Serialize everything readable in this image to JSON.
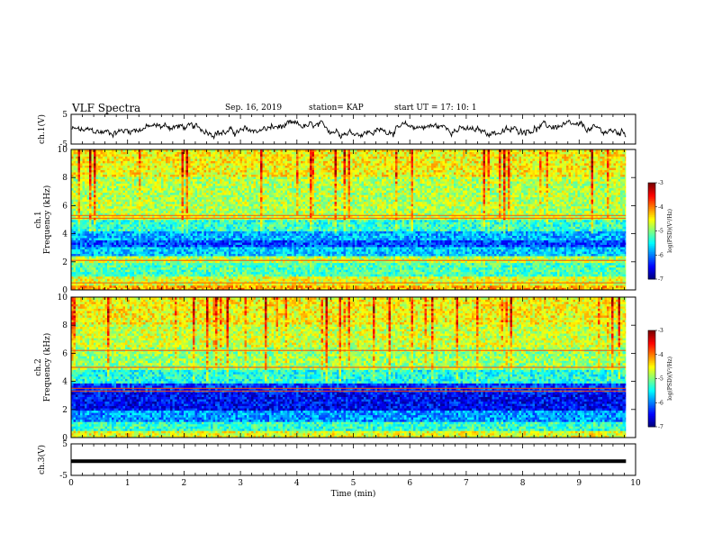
{
  "header": {
    "title": "VLF Spectra",
    "date": "Sep. 16, 2019",
    "station": "station= KAP",
    "start": "start  UT =   17: 10: 1"
  },
  "chart_data": [
    {
      "type": "line",
      "title": "",
      "ylabel": "ch.1(V)",
      "ylim": [
        -5,
        5
      ],
      "yticks": [
        "5",
        "-5"
      ],
      "xlim": [
        0,
        10
      ],
      "series": [
        {
          "name": "",
          "description_values_approx": "noisy waveform, amplitude mostly between -2 and 2 V"
        }
      ]
    },
    {
      "type": "heatmap",
      "title": "",
      "ylabel": "ch.1\nFrequency (kHz)",
      "ylim": [
        0,
        10
      ],
      "yticks": [
        "0",
        "2",
        "4",
        "6",
        "8",
        "10"
      ],
      "xlim": [
        0,
        10
      ],
      "data_extent_x": [
        0,
        9.83
      ],
      "colorbar": {
        "label": "log(PSD)(V²/Hz)",
        "range": [
          -7,
          -3
        ],
        "ticks": [
          "-3",
          "-4",
          "-5",
          "-6",
          "-7"
        ]
      },
      "bands": [
        {
          "from": 0,
          "to": 0.3,
          "level": -4.2
        },
        {
          "from": 0.3,
          "to": 1.0,
          "level": -4.6
        },
        {
          "from": 1.0,
          "to": 2.0,
          "level": -5.2
        },
        {
          "from": 2.0,
          "to": 2.4,
          "level": -4.8
        },
        {
          "from": 2.4,
          "to": 3.0,
          "level": -5.7
        },
        {
          "from": 3.0,
          "to": 3.5,
          "level": -6.2
        },
        {
          "from": 3.5,
          "to": 4.2,
          "level": -5.8
        },
        {
          "from": 4.2,
          "to": 5.0,
          "level": -5.3
        },
        {
          "from": 5.0,
          "to": 5.4,
          "level": -4.7
        },
        {
          "from": 5.4,
          "to": 8.0,
          "level": -4.8
        },
        {
          "from": 8.0,
          "to": 10.0,
          "level": -4.5
        }
      ],
      "lines_khz": [
        0.5,
        2.1,
        5.1,
        5.3
      ]
    },
    {
      "type": "heatmap",
      "title": "",
      "ylabel": "ch.2\nFrequency (kHz)",
      "ylim": [
        0,
        10
      ],
      "yticks": [
        "0",
        "2",
        "4",
        "6",
        "8",
        "10"
      ],
      "xlim": [
        0,
        10
      ],
      "data_extent_x": [
        0,
        9.83
      ],
      "colorbar": {
        "label": "log(PSD)(V²/Hz)",
        "range": [
          -7,
          -3
        ],
        "ticks": [
          "-3",
          "-4",
          "-5",
          "-6",
          "-7"
        ]
      },
      "bands": [
        {
          "from": 0,
          "to": 0.5,
          "level": -4.6
        },
        {
          "from": 0.5,
          "to": 1.2,
          "level": -5.3
        },
        {
          "from": 1.2,
          "to": 2.0,
          "level": -5.9
        },
        {
          "from": 2.0,
          "to": 3.2,
          "level": -6.5
        },
        {
          "from": 3.2,
          "to": 3.8,
          "level": -6.3
        },
        {
          "from": 3.8,
          "to": 4.8,
          "level": -5.4
        },
        {
          "from": 4.8,
          "to": 6.4,
          "level": -4.9
        },
        {
          "from": 6.4,
          "to": 8.0,
          "level": -4.7
        },
        {
          "from": 8.0,
          "to": 10.0,
          "level": -4.5
        }
      ],
      "lines_khz": [
        3.3,
        3.5,
        6.2,
        5.0
      ]
    },
    {
      "type": "line",
      "title": "",
      "xlabel": "Time  (min)",
      "ylabel": "ch.3(V)",
      "ylim": [
        -5,
        5
      ],
      "yticks": [
        "5",
        "-5"
      ],
      "xlim": [
        0,
        10
      ],
      "xticks": [
        "0",
        "1",
        "2",
        "3",
        "4",
        "5",
        "6",
        "7",
        "8",
        "9",
        "10"
      ],
      "series": [
        {
          "name": "",
          "constant_value": -0.5
        }
      ]
    }
  ]
}
